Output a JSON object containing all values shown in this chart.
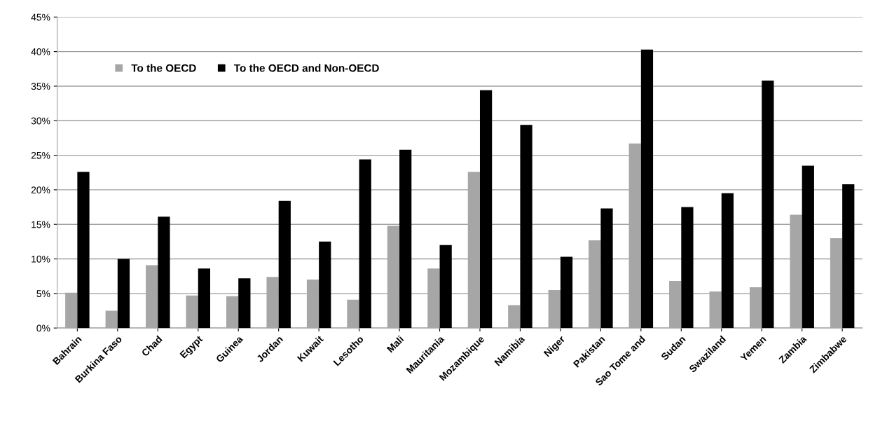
{
  "chart_data": {
    "type": "bar",
    "categories": [
      "Bahrain",
      "Burkina Faso",
      "Chad",
      "Egypt",
      "Guinea",
      "Jordan",
      "Kuwait",
      "Lesotho",
      "Mali",
      "Mauritania",
      "Mozambique",
      "Namibia",
      "Niger",
      "Pakistan",
      "Sao Tome and",
      "Sudan",
      "Swaziland",
      "Yemen",
      "Zambia",
      "Zimbabwe"
    ],
    "series": [
      {
        "name": "To the OECD",
        "color": "#a6a6a6",
        "values": [
          5.1,
          2.5,
          9.1,
          4.7,
          4.6,
          7.4,
          7.0,
          4.1,
          14.8,
          8.6,
          22.6,
          3.3,
          5.5,
          12.7,
          26.7,
          6.8,
          5.3,
          5.9,
          16.4,
          13.0
        ]
      },
      {
        "name": "To the OECD and Non-OECD",
        "color": "#000000",
        "values": [
          22.6,
          10.0,
          16.1,
          8.6,
          7.2,
          18.4,
          12.5,
          24.4,
          25.8,
          12.0,
          34.4,
          29.4,
          10.3,
          17.3,
          40.3,
          17.5,
          19.5,
          35.8,
          23.5,
          20.8
        ]
      }
    ],
    "ylim": [
      0,
      45
    ],
    "yticks": [
      {
        "value": 0,
        "label": "0%"
      },
      {
        "value": 5,
        "label": "5%"
      },
      {
        "value": 10,
        "label": "10%"
      },
      {
        "value": 15,
        "label": "15%"
      },
      {
        "value": 20,
        "label": "20%"
      },
      {
        "value": 25,
        "label": "25%"
      },
      {
        "value": 30,
        "label": "30%"
      },
      {
        "value": 35,
        "label": "35%"
      },
      {
        "value": 40,
        "label": "40%"
      },
      {
        "value": 45,
        "label": "45%"
      }
    ],
    "grid": "y",
    "legend": "top left"
  }
}
